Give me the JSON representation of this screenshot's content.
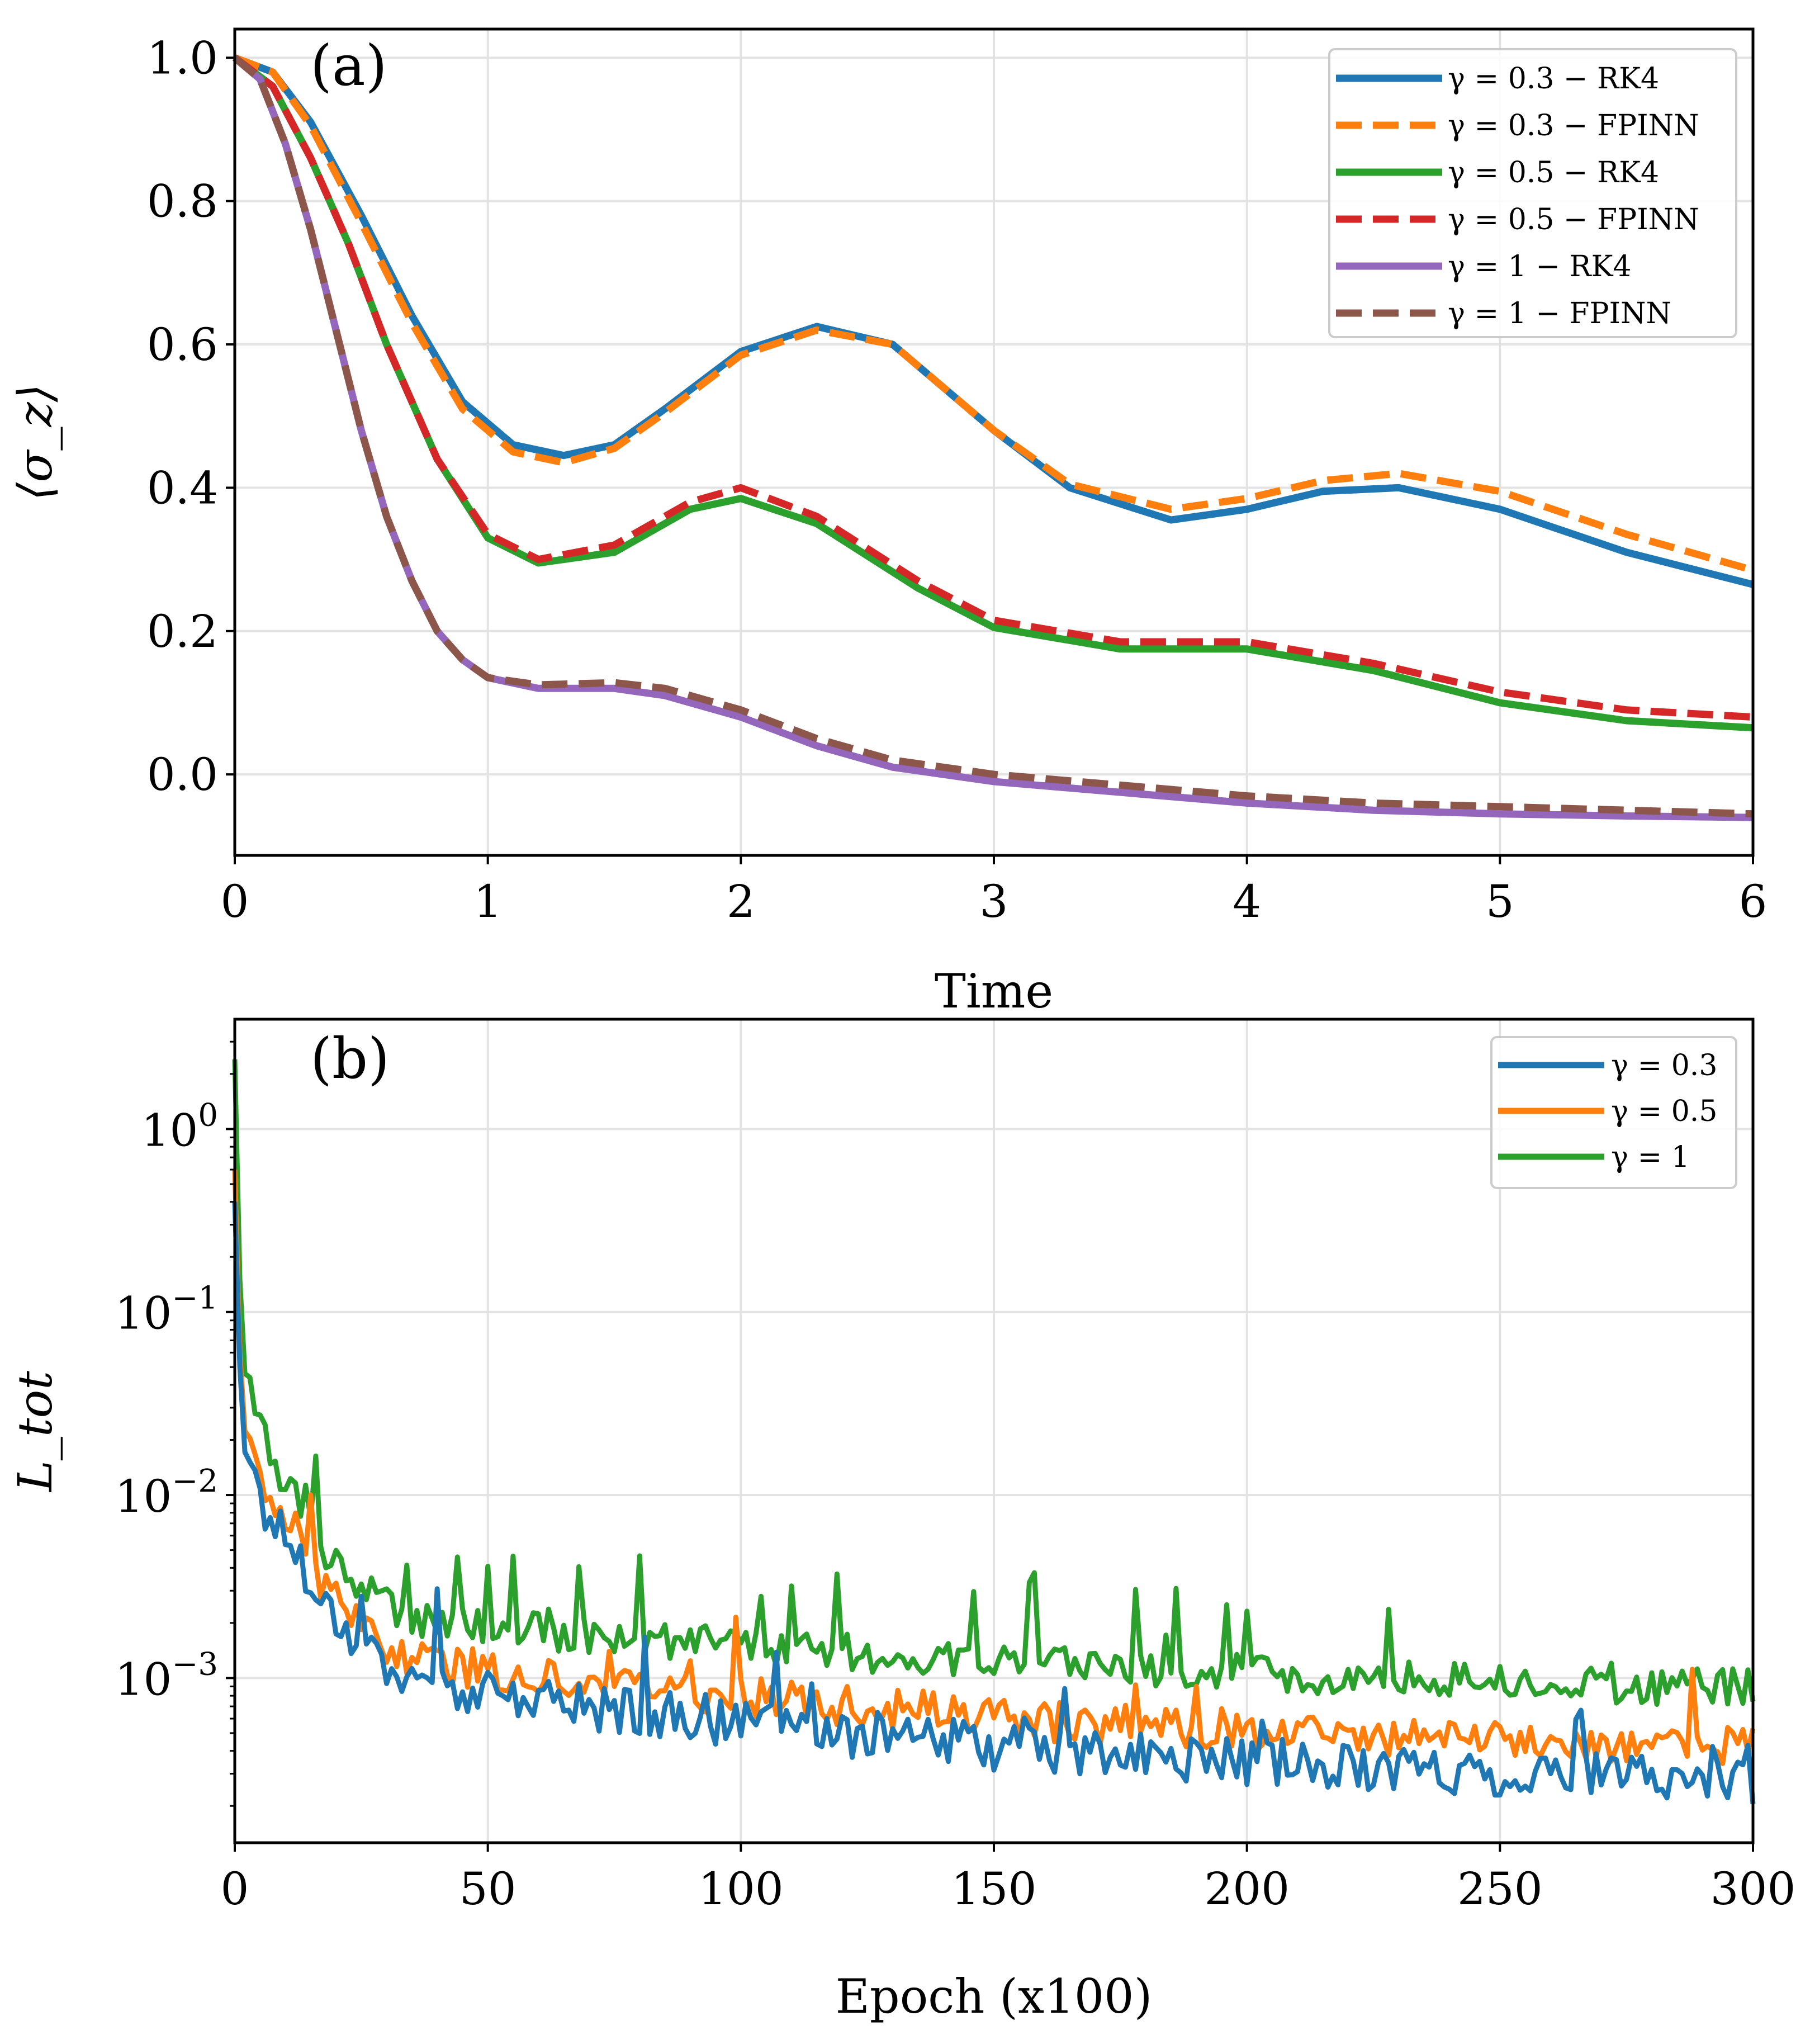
{
  "chart_data": [
    {
      "panel_label": "(a)",
      "type": "line",
      "xlabel": "Time",
      "ylabel": "⟨σ_z⟩",
      "xlim": [
        0,
        6
      ],
      "ylim": [
        -0.113,
        1.04
      ],
      "xticks": [
        "0",
        "1",
        "2",
        "3",
        "4",
        "5",
        "6"
      ],
      "yticks": [
        "0.0",
        "0.2",
        "0.4",
        "0.6",
        "0.8",
        "1.0"
      ],
      "grid": true,
      "legend_position": "top-right",
      "series": [
        {
          "name": "γ = 0.3 − RK4",
          "color": "#1f77b4",
          "style": "solid",
          "x": [
            0,
            0.15,
            0.3,
            0.5,
            0.7,
            0.9,
            1.1,
            1.3,
            1.5,
            1.7,
            2.0,
            2.3,
            2.6,
            3.0,
            3.3,
            3.7,
            4.0,
            4.3,
            4.6,
            5.0,
            5.5,
            6.0
          ],
          "y": [
            1.0,
            0.98,
            0.91,
            0.78,
            0.64,
            0.52,
            0.46,
            0.445,
            0.46,
            0.51,
            0.59,
            0.625,
            0.6,
            0.48,
            0.4,
            0.355,
            0.37,
            0.395,
            0.4,
            0.37,
            0.31,
            0.265
          ]
        },
        {
          "name": "γ = 0.3 − FPINN",
          "color": "#ff7f0e",
          "style": "dashed",
          "x": [
            0,
            0.15,
            0.3,
            0.5,
            0.7,
            0.9,
            1.1,
            1.3,
            1.5,
            1.7,
            2.0,
            2.3,
            2.6,
            3.0,
            3.3,
            3.7,
            4.0,
            4.3,
            4.6,
            5.0,
            5.5,
            6.0
          ],
          "y": [
            1.0,
            0.98,
            0.905,
            0.77,
            0.63,
            0.51,
            0.45,
            0.435,
            0.455,
            0.505,
            0.585,
            0.62,
            0.6,
            0.48,
            0.405,
            0.37,
            0.385,
            0.41,
            0.42,
            0.395,
            0.335,
            0.285
          ]
        },
        {
          "name": "γ = 0.5 − RK4",
          "color": "#2ca02c",
          "style": "solid",
          "x": [
            0,
            0.15,
            0.3,
            0.45,
            0.6,
            0.8,
            1.0,
            1.2,
            1.5,
            1.8,
            2.0,
            2.3,
            2.7,
            3.0,
            3.5,
            4.0,
            4.5,
            5.0,
            5.5,
            6.0
          ],
          "y": [
            1.0,
            0.96,
            0.86,
            0.74,
            0.6,
            0.44,
            0.33,
            0.295,
            0.31,
            0.37,
            0.385,
            0.35,
            0.26,
            0.205,
            0.175,
            0.175,
            0.145,
            0.1,
            0.075,
            0.065
          ]
        },
        {
          "name": "γ = 0.5 − FPINN",
          "color": "#d62728",
          "style": "dashed",
          "x": [
            0,
            0.15,
            0.3,
            0.45,
            0.6,
            0.8,
            1.0,
            1.2,
            1.5,
            1.8,
            2.0,
            2.3,
            2.7,
            3.0,
            3.5,
            4.0,
            4.5,
            5.0,
            5.5,
            6.0
          ],
          "y": [
            1.0,
            0.96,
            0.86,
            0.74,
            0.6,
            0.44,
            0.335,
            0.3,
            0.32,
            0.38,
            0.4,
            0.36,
            0.27,
            0.215,
            0.185,
            0.185,
            0.155,
            0.115,
            0.09,
            0.08
          ]
        },
        {
          "name": "γ = 1 − RK4",
          "color": "#9467bd",
          "style": "solid",
          "x": [
            0,
            0.1,
            0.2,
            0.3,
            0.4,
            0.5,
            0.6,
            0.7,
            0.8,
            0.9,
            1.0,
            1.2,
            1.5,
            1.7,
            2.0,
            2.3,
            2.6,
            3.0,
            3.5,
            4.0,
            4.5,
            5.0,
            5.5,
            6.0
          ],
          "y": [
            1.0,
            0.97,
            0.88,
            0.76,
            0.62,
            0.48,
            0.36,
            0.27,
            0.2,
            0.16,
            0.135,
            0.12,
            0.12,
            0.11,
            0.08,
            0.04,
            0.01,
            -0.01,
            -0.025,
            -0.04,
            -0.05,
            -0.055,
            -0.058,
            -0.06
          ]
        },
        {
          "name": "γ = 1 − FPINN",
          "color": "#8c564b",
          "style": "dashed",
          "x": [
            0,
            0.1,
            0.2,
            0.3,
            0.4,
            0.5,
            0.6,
            0.7,
            0.8,
            0.9,
            1.0,
            1.2,
            1.5,
            1.7,
            2.0,
            2.3,
            2.6,
            3.0,
            3.5,
            4.0,
            4.5,
            5.0,
            5.5,
            6.0
          ],
          "y": [
            1.0,
            0.97,
            0.88,
            0.76,
            0.62,
            0.48,
            0.36,
            0.27,
            0.2,
            0.16,
            0.135,
            0.125,
            0.128,
            0.12,
            0.09,
            0.05,
            0.02,
            0.0,
            -0.015,
            -0.03,
            -0.04,
            -0.045,
            -0.05,
            -0.055
          ]
        }
      ]
    },
    {
      "panel_label": "(b)",
      "type": "line",
      "yscale": "log",
      "xlabel": "Epoch (x100)",
      "ylabel": "L_tot",
      "xlim": [
        0,
        300
      ],
      "ylim_log10": [
        -3.9,
        0.6
      ],
      "xticks": [
        "0",
        "50",
        "100",
        "150",
        "200",
        "250",
        "300"
      ],
      "yticks": [
        {
          "base": "10",
          "exp": "0",
          "log": 0
        },
        {
          "base": "10",
          "exp": "−1",
          "log": -1
        },
        {
          "base": "10",
          "exp": "−2",
          "log": -2
        },
        {
          "base": "10",
          "exp": "−3",
          "log": -3
        }
      ],
      "grid": true,
      "legend_position": "top-right",
      "series": [
        {
          "name": "γ = 0.3",
          "color": "#1f77b4",
          "x": [
            0,
            1,
            2,
            4,
            6,
            8,
            10,
            14,
            18,
            22,
            26,
            30,
            35,
            40,
            50,
            60,
            70,
            80,
            90,
            100,
            110,
            120,
            130,
            140,
            150,
            160,
            170,
            180,
            190,
            200,
            210,
            220,
            230,
            240,
            250,
            260,
            270,
            280,
            290,
            300
          ],
          "y": [
            0.4,
            0.05,
            0.02,
            0.012,
            0.008,
            0.007,
            0.006,
            0.004,
            0.0025,
            0.0018,
            0.0015,
            0.0012,
            0.001,
            0.0009,
            0.0008,
            0.00075,
            0.0007,
            0.00065,
            0.0006,
            0.00055,
            0.00052,
            0.0005,
            0.00047,
            0.00045,
            0.00042,
            0.0004,
            0.00038,
            0.00037,
            0.00036,
            0.00035,
            0.00034,
            0.00033,
            0.00032,
            0.00031,
            0.0003,
            0.0003,
            0.00029,
            0.00029,
            0.00028,
            0.00027
          ]
        },
        {
          "name": "γ = 0.5",
          "color": "#ff7f0e",
          "x": [
            0,
            1,
            2,
            4,
            6,
            8,
            10,
            14,
            18,
            22,
            26,
            30,
            35,
            40,
            50,
            60,
            70,
            80,
            90,
            100,
            110,
            120,
            130,
            140,
            150,
            160,
            170,
            180,
            190,
            200,
            210,
            220,
            230,
            240,
            250,
            260,
            270,
            280,
            290,
            300
          ],
          "y": [
            0.6,
            0.06,
            0.025,
            0.014,
            0.01,
            0.009,
            0.008,
            0.005,
            0.003,
            0.0022,
            0.0018,
            0.0015,
            0.0013,
            0.0012,
            0.0011,
            0.001,
            0.00095,
            0.0009,
            0.00085,
            0.0008,
            0.00075,
            0.0007,
            0.00068,
            0.00065,
            0.0006,
            0.00058,
            0.00056,
            0.00055,
            0.00054,
            0.00052,
            0.0005,
            0.00049,
            0.00048,
            0.00047,
            0.00046,
            0.00045,
            0.00045,
            0.00044,
            0.00044,
            0.00043
          ]
        },
        {
          "name": "γ = 1",
          "color": "#2ca02c",
          "x": [
            0,
            1,
            2,
            4,
            6,
            8,
            10,
            14,
            18,
            22,
            26,
            30,
            35,
            40,
            50,
            60,
            70,
            80,
            90,
            100,
            110,
            120,
            130,
            140,
            150,
            160,
            170,
            180,
            190,
            200,
            210,
            220,
            230,
            240,
            250,
            260,
            270,
            280,
            290,
            300
          ],
          "y": [
            2.4,
            0.15,
            0.05,
            0.03,
            0.02,
            0.015,
            0.012,
            0.008,
            0.005,
            0.004,
            0.003,
            0.0025,
            0.0022,
            0.002,
            0.0019,
            0.0018,
            0.0017,
            0.0016,
            0.0016,
            0.0015,
            0.0014,
            0.0014,
            0.0013,
            0.0013,
            0.0012,
            0.0012,
            0.0012,
            0.0011,
            0.0011,
            0.0011,
            0.001,
            0.001,
            0.001,
            0.001,
            0.00095,
            0.00095,
            0.0009,
            0.0009,
            0.0009,
            0.0009
          ]
        }
      ]
    }
  ]
}
